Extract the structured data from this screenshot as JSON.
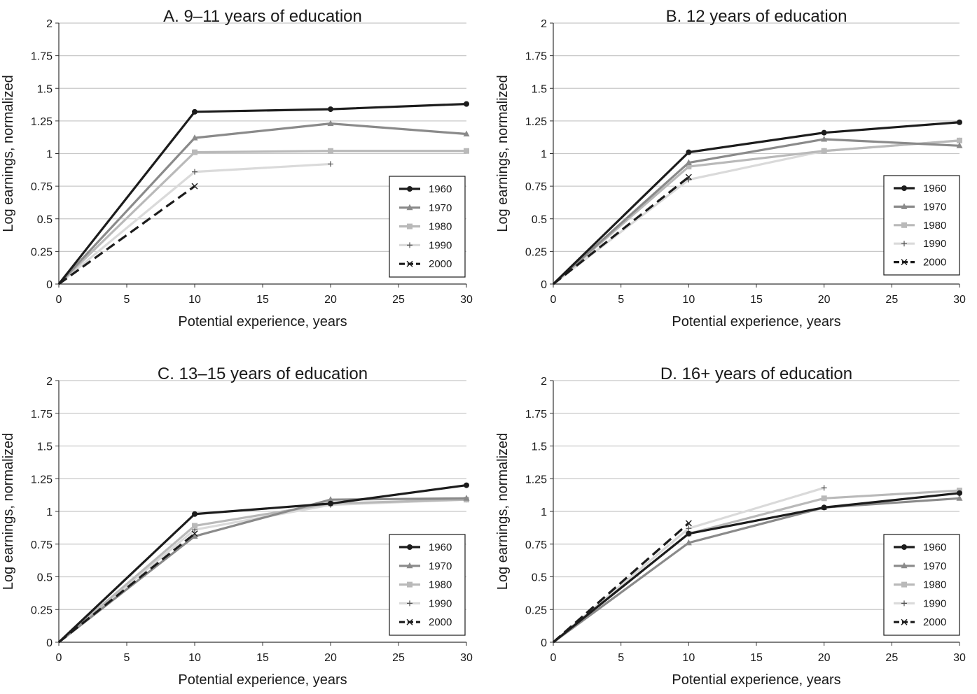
{
  "chart_data": [
    {
      "type": "line",
      "title": "A. 9–11 years of education",
      "xlabel": "Potential experience, years",
      "ylabel": "Log earnings, normalized",
      "xlim": [
        0,
        30
      ],
      "ylim": [
        0,
        2
      ],
      "xticks": [
        "0",
        "5",
        "10",
        "15",
        "20",
        "25",
        "30"
      ],
      "yticks": [
        "0",
        "0.25",
        "0.5",
        "0.75",
        "1",
        "1.25",
        "1.5",
        "1.75",
        "2"
      ],
      "grid": "horizontal",
      "legend": "lower-right",
      "series": [
        {
          "name": "1960",
          "x": [
            0,
            10,
            20,
            30
          ],
          "values": [
            0,
            1.32,
            1.34,
            1.38
          ]
        },
        {
          "name": "1970",
          "x": [
            0,
            10,
            20,
            30
          ],
          "values": [
            0,
            1.12,
            1.23,
            1.15
          ]
        },
        {
          "name": "1980",
          "x": [
            0,
            10,
            20,
            30
          ],
          "values": [
            0,
            1.01,
            1.02,
            1.02
          ]
        },
        {
          "name": "1990",
          "x": [
            0,
            10,
            20
          ],
          "values": [
            0,
            0.86,
            0.92
          ]
        },
        {
          "name": "2000",
          "x": [
            0,
            10
          ],
          "values": [
            0,
            0.75
          ]
        }
      ]
    },
    {
      "type": "line",
      "title": "B. 12 years of education",
      "xlabel": "Potential experience, years",
      "ylabel": "Log earnings, normalized",
      "xlim": [
        0,
        30
      ],
      "ylim": [
        0,
        2
      ],
      "xticks": [
        "0",
        "5",
        "10",
        "15",
        "20",
        "25",
        "30"
      ],
      "yticks": [
        "0",
        "0.25",
        "0.5",
        "0.75",
        "1",
        "1.25",
        "1.5",
        "1.75",
        "2"
      ],
      "grid": "horizontal",
      "legend": "lower-right",
      "series": [
        {
          "name": "1960",
          "x": [
            0,
            10,
            20,
            30
          ],
          "values": [
            0,
            1.01,
            1.16,
            1.24
          ]
        },
        {
          "name": "1970",
          "x": [
            0,
            10,
            20,
            30
          ],
          "values": [
            0,
            0.93,
            1.11,
            1.06
          ]
        },
        {
          "name": "1980",
          "x": [
            0,
            10,
            20,
            30
          ],
          "values": [
            0,
            0.9,
            1.02,
            1.1
          ]
        },
        {
          "name": "1990",
          "x": [
            0,
            10,
            20,
            30
          ],
          "values": [
            0,
            0.8,
            1.02,
            1.1
          ]
        },
        {
          "name": "2000",
          "x": [
            0,
            10
          ],
          "values": [
            0,
            0.82
          ]
        }
      ]
    },
    {
      "type": "line",
      "title": "C. 13–15 years of education",
      "xlabel": "Potential experience, years",
      "ylabel": "Log earnings, normalized",
      "xlim": [
        0,
        30
      ],
      "ylim": [
        0,
        2
      ],
      "xticks": [
        "0",
        "5",
        "10",
        "15",
        "20",
        "25",
        "30"
      ],
      "yticks": [
        "0",
        "0.25",
        "0.5",
        "0.75",
        "1",
        "1.25",
        "1.5",
        "1.75",
        "2"
      ],
      "grid": "horizontal",
      "legend": "lower-right",
      "series": [
        {
          "name": "1960",
          "x": [
            0,
            10,
            20,
            30
          ],
          "values": [
            0,
            0.98,
            1.06,
            1.2
          ]
        },
        {
          "name": "1970",
          "x": [
            0,
            10,
            20,
            30
          ],
          "values": [
            0,
            0.81,
            1.09,
            1.1
          ]
        },
        {
          "name": "1980",
          "x": [
            0,
            10,
            20,
            30
          ],
          "values": [
            0,
            0.89,
            1.06,
            1.09
          ]
        },
        {
          "name": "1990",
          "x": [
            0,
            10,
            20,
            30
          ],
          "values": [
            0,
            0.86,
            1.05,
            1.09
          ]
        },
        {
          "name": "2000",
          "x": [
            0,
            10
          ],
          "values": [
            0,
            0.83
          ]
        }
      ]
    },
    {
      "type": "line",
      "title": "D. 16+ years of education",
      "xlabel": "Potential experience, years",
      "ylabel": "Log earnings, normalized",
      "xlim": [
        0,
        30
      ],
      "ylim": [
        0,
        2
      ],
      "xticks": [
        "0",
        "5",
        "10",
        "15",
        "20",
        "25",
        "30"
      ],
      "yticks": [
        "0",
        "0.25",
        "0.5",
        "0.75",
        "1",
        "1.25",
        "1.5",
        "1.75",
        "2"
      ],
      "grid": "horizontal",
      "legend": "lower-right",
      "series": [
        {
          "name": "1960",
          "x": [
            0,
            10,
            20,
            30
          ],
          "values": [
            0,
            0.83,
            1.03,
            1.14
          ]
        },
        {
          "name": "1970",
          "x": [
            0,
            10,
            20,
            30
          ],
          "values": [
            0,
            0.76,
            1.03,
            1.1
          ]
        },
        {
          "name": "1980",
          "x": [
            0,
            10,
            20,
            30
          ],
          "values": [
            0,
            0.83,
            1.1,
            1.16
          ]
        },
        {
          "name": "1990",
          "x": [
            0,
            10,
            20
          ],
          "values": [
            0,
            0.87,
            1.18
          ]
        },
        {
          "name": "2000",
          "x": [
            0,
            10
          ],
          "values": [
            0,
            0.91
          ]
        }
      ]
    }
  ],
  "series_styles": [
    {
      "color": "#1c1c1c",
      "marker": "circle",
      "dash": "solid"
    },
    {
      "color": "#8a8a8a",
      "marker": "triangle",
      "dash": "solid"
    },
    {
      "color": "#b9b9b9",
      "marker": "square",
      "dash": "solid"
    },
    {
      "color": "#dadada",
      "marker": "plus",
      "dash": "solid"
    },
    {
      "color": "#1c1c1c",
      "marker": "x",
      "dash": "dashed"
    }
  ],
  "colors": {
    "grid": "#c8c8c8",
    "axis": "#333333",
    "text": "#1a1a1a"
  }
}
